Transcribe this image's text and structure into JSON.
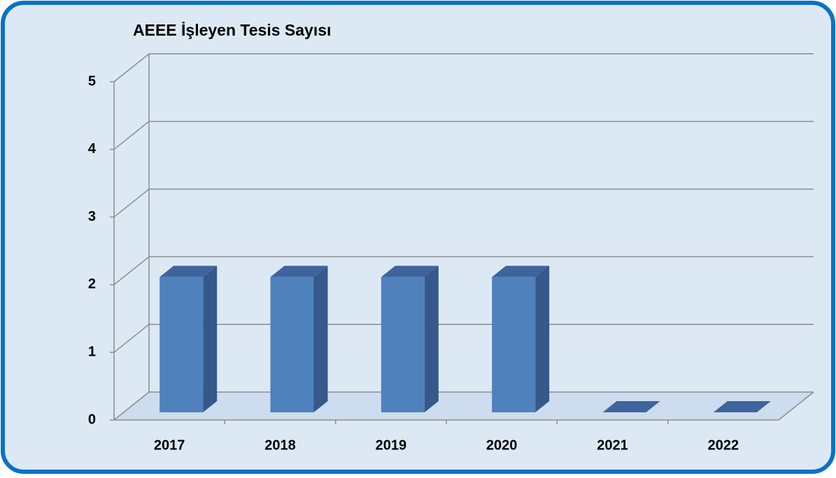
{
  "chart_data": {
    "type": "bar3d",
    "title": "AEEE İşleyen Tesis Sayısı",
    "categories": [
      "2017",
      "2018",
      "2019",
      "2020",
      "2021",
      "2022"
    ],
    "values": [
      2,
      2,
      2,
      2,
      0,
      0
    ],
    "color": "#4f81bd",
    "ylim": [
      0,
      5
    ],
    "yticks": [
      0,
      1,
      2,
      3,
      4,
      5
    ],
    "grid": true
  }
}
